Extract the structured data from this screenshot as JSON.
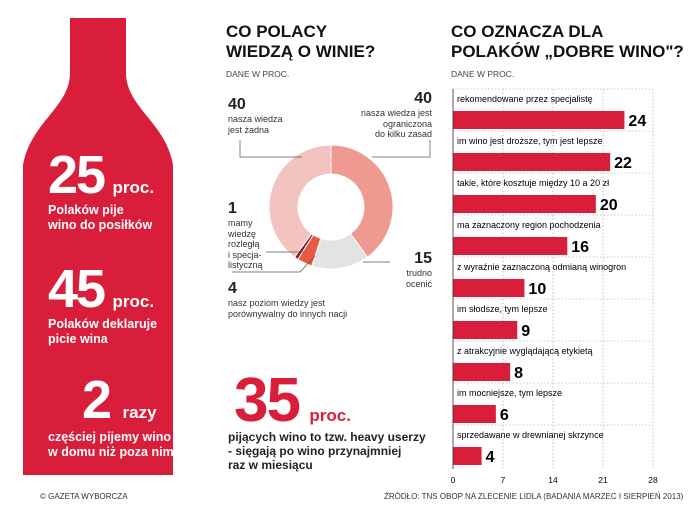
{
  "bottle": {
    "stat1": {
      "number": "25",
      "unit": "proc.",
      "text": [
        "Polaków pije",
        "wino do posiłków"
      ]
    },
    "stat2": {
      "number": "45",
      "unit": "proc.",
      "text": [
        "Polaków deklaruje",
        "picie wina"
      ]
    },
    "stat3": {
      "number": "2",
      "unit": "razy",
      "text": [
        "częściej pijemy wino",
        "w domu niż poza nim"
      ]
    }
  },
  "donut": {
    "title": [
      "CO POLACY",
      "WIEDZĄ O WINIE?"
    ],
    "subtitle": "DANE W PROC.",
    "labels": [
      {
        "number": "40",
        "lines": [
          "nasza wiedza",
          "jest żadna"
        ]
      },
      {
        "number": "40",
        "lines": [
          "nasza wiedza jest",
          "ograniczona",
          "do kilku zasad"
        ]
      },
      {
        "number": "15",
        "lines": [
          "trudno",
          "ocenić"
        ]
      },
      {
        "number": "4",
        "lines": [
          "nasz poziom wiedzy jest",
          "porównywalny do innych nacji"
        ]
      },
      {
        "number": "1",
        "lines": [
          "mamy",
          "wiedzę",
          "rozległą",
          "i specja-",
          "listyczną"
        ]
      }
    ]
  },
  "heavy": {
    "number": "35",
    "unit": "proc.",
    "lines": [
      "pijących wino to tzw. heavy userzy",
      "- sięgają po wino przynajmniej",
      "raz w miesiącu"
    ]
  },
  "bars": {
    "title": [
      "CO OZNACZA DLA",
      "POLAKÓW „DOBRE WINO\"?"
    ],
    "subtitle": "DANE W PROC."
  },
  "footer": {
    "left": "© GAZETA WYBORCZA",
    "right": "ŹRÓDŁO: TNS OBOP NA ZLECENIE LIDLA (BADANIA MARZEC I SIERPIEŃ 2013)"
  },
  "colors": {
    "accent": "#d81e3a",
    "donut_light": "#f3c3bf",
    "donut_mid": "#ee9a90",
    "donut_gray": "#e3e3e3",
    "donut_salmon": "#e85a43",
    "donut_dark": "#8e1428"
  },
  "chart_data": [
    {
      "type": "pie",
      "title": "CO POLACY WIEDZĄ O WINIE?",
      "subtitle": "DANE W PROC.",
      "categories": [
        "nasza wiedza jest żadna",
        "nasza wiedza jest ograniczona do kilku zasad",
        "trudno ocenić",
        "nasz poziom wiedzy jest porównywalny do innych nacji",
        "mamy wiedzę rozległą i specjalistyczną"
      ],
      "values": [
        40,
        40,
        15,
        4,
        1
      ]
    },
    {
      "type": "bar",
      "orientation": "horizontal",
      "title": "CO OZNACZA DLA POLAKÓW „DOBRE WINO\"?",
      "subtitle": "DANE W PROC.",
      "categories": [
        "rekomendowane przez specjalistę",
        "im wino jest droższe, tym jest lepsze",
        "takie, które kosztuje między 10 a 20 zł",
        "ma zaznaczony region pochodzenia",
        "z wyraźnie zaznaczoną odmianą winogron",
        "im słodsze, tym lepsze",
        "z atrakcyjnie wyglądającą etykietą",
        "im mocniejsze, tym lepsze",
        "sprzedawane w drewnianej skrzynce"
      ],
      "values": [
        24,
        22,
        20,
        16,
        10,
        9,
        8,
        6,
        4
      ],
      "xlim": [
        0,
        28
      ],
      "xticks": [
        "0",
        "7",
        "14",
        "21",
        "28"
      ],
      "grid": true
    }
  ]
}
